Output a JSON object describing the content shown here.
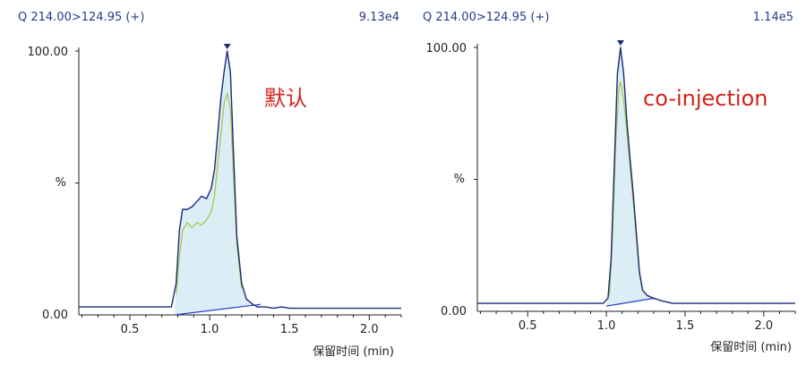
{
  "chart_data": [
    {
      "type": "line",
      "title": "Q 214.00>124.95 (+)",
      "intensity": "9.13e4",
      "annotation": "默认",
      "xlabel": "保留时间 (min)",
      "ylabel": "%",
      "xlim": [
        0.18,
        2.2
      ],
      "ylim": [
        0,
        100
      ],
      "xticks": [
        "0.5",
        "1.0",
        "1.5",
        "2.0"
      ],
      "xtick_values": [
        0.5,
        1.0,
        1.5,
        2.0
      ],
      "ytick_top": "100.00",
      "ytick_bottom": "0.00",
      "peak_marker_x": 1.11,
      "baseline": [
        [
          0.78,
          0
        ],
        [
          1.32,
          4
        ]
      ],
      "series": [
        {
          "color": "#1d2a7a",
          "points": [
            [
              0.18,
              3
            ],
            [
              0.72,
              3
            ],
            [
              0.76,
              3
            ],
            [
              0.79,
              12
            ],
            [
              0.81,
              32
            ],
            [
              0.83,
              40
            ],
            [
              0.86,
              40
            ],
            [
              0.89,
              41
            ],
            [
              0.92,
              43
            ],
            [
              0.95,
              45
            ],
            [
              0.98,
              44
            ],
            [
              1.01,
              48
            ],
            [
              1.03,
              55
            ],
            [
              1.05,
              68
            ],
            [
              1.07,
              82
            ],
            [
              1.09,
              92
            ],
            [
              1.11,
              100
            ],
            [
              1.13,
              92
            ],
            [
              1.15,
              60
            ],
            [
              1.17,
              30
            ],
            [
              1.2,
              12
            ],
            [
              1.23,
              6
            ],
            [
              1.27,
              4
            ],
            [
              1.3,
              3
            ],
            [
              1.35,
              3
            ],
            [
              1.4,
              2.5
            ],
            [
              1.45,
              3
            ],
            [
              1.5,
              2.5
            ],
            [
              2.2,
              2.5
            ]
          ]
        },
        {
          "color": "#a8c848",
          "points": [
            [
              0.79,
              8
            ],
            [
              0.81,
              22
            ],
            [
              0.83,
              32
            ],
            [
              0.86,
              35
            ],
            [
              0.89,
              33
            ],
            [
              0.92,
              35
            ],
            [
              0.95,
              34
            ],
            [
              0.98,
              36
            ],
            [
              1.01,
              39
            ],
            [
              1.03,
              45
            ],
            [
              1.05,
              57
            ],
            [
              1.07,
              68
            ],
            [
              1.09,
              80
            ],
            [
              1.11,
              84
            ],
            [
              1.13,
              78
            ],
            [
              1.15,
              52
            ],
            [
              1.17,
              27
            ],
            [
              1.2,
              10
            ]
          ]
        }
      ]
    },
    {
      "type": "line",
      "title": "Q 214.00>124.95 (+)",
      "intensity": "1.14e5",
      "annotation": "co-injection",
      "xlabel": "保留时间 (min)",
      "ylabel": "%",
      "xlim": [
        0.18,
        2.2
      ],
      "ylim": [
        0,
        100
      ],
      "xticks": [
        "0.5",
        "1.0",
        "1.5",
        "2.0"
      ],
      "xtick_values": [
        0.5,
        1.0,
        1.5,
        2.0
      ],
      "ytick_top": "100.00",
      "ytick_bottom": "0.00",
      "peak_marker_x": 1.09,
      "baseline": [
        [
          1.0,
          2
        ],
        [
          1.31,
          5
        ]
      ],
      "series": [
        {
          "color": "#1d2a7a",
          "points": [
            [
              0.18,
              3
            ],
            [
              0.98,
              3
            ],
            [
              1.01,
              5
            ],
            [
              1.03,
              20
            ],
            [
              1.05,
              55
            ],
            [
              1.07,
              90
            ],
            [
              1.09,
              100
            ],
            [
              1.11,
              90
            ],
            [
              1.13,
              72
            ],
            [
              1.15,
              58
            ],
            [
              1.17,
              45
            ],
            [
              1.19,
              30
            ],
            [
              1.21,
              15
            ],
            [
              1.23,
              8
            ],
            [
              1.26,
              6
            ],
            [
              1.3,
              5
            ],
            [
              1.35,
              4
            ],
            [
              1.42,
              3
            ],
            [
              2.2,
              3
            ]
          ]
        },
        {
          "color": "#a8c848",
          "points": [
            [
              1.02,
              6
            ],
            [
              1.04,
              30
            ],
            [
              1.06,
              65
            ],
            [
              1.08,
              85
            ],
            [
              1.09,
              87
            ],
            [
              1.11,
              80
            ],
            [
              1.13,
              68
            ],
            [
              1.15,
              55
            ],
            [
              1.17,
              42
            ],
            [
              1.19,
              28
            ],
            [
              1.21,
              14
            ],
            [
              1.23,
              8
            ]
          ]
        }
      ]
    }
  ]
}
